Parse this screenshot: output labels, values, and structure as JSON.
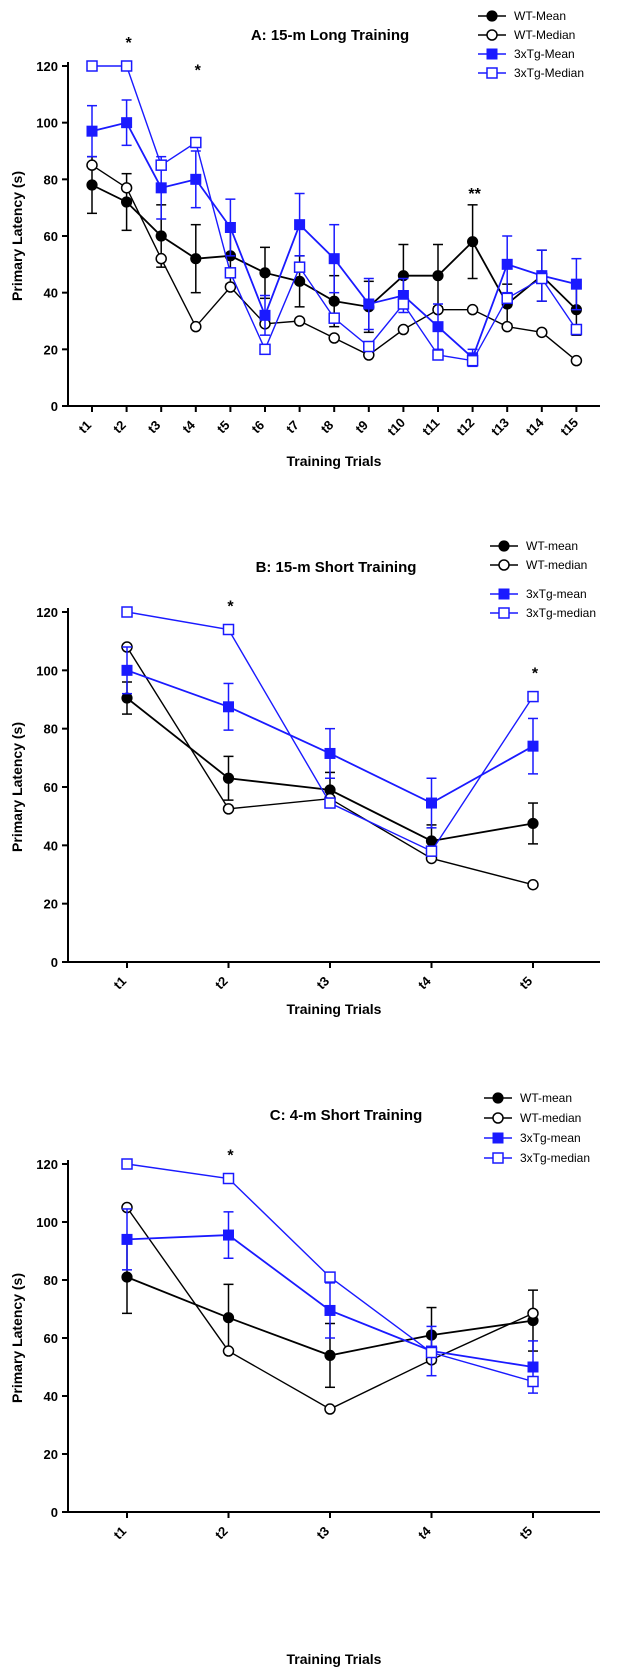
{
  "chart_data": [
    {
      "type": "line",
      "title": "A: 15-m Long Training",
      "xlabel": "Training Trials",
      "ylabel": "Primary Latency (s)",
      "ylim": [
        0,
        120
      ],
      "yticks": [
        0,
        20,
        40,
        60,
        80,
        100,
        120
      ],
      "categories": [
        "t1",
        "t2",
        "t3",
        "t4",
        "t5",
        "t6",
        "t7",
        "t8",
        "t9",
        "t10",
        "t11",
        "t12",
        "t13",
        "t14",
        "t15"
      ],
      "legend_position": "top-right",
      "series": [
        {
          "name": "WT-Mean",
          "color": "#000000",
          "marker": "filled-circle",
          "values": [
            78,
            72,
            60,
            52,
            53,
            47,
            44,
            37,
            35,
            46,
            46,
            58,
            36,
            46,
            34
          ],
          "errors": [
            10,
            10,
            11,
            12,
            10,
            9,
            9,
            9,
            9,
            11,
            11,
            13,
            7,
            9,
            9
          ]
        },
        {
          "name": "WT-Median",
          "color": "#000000",
          "marker": "open-circle",
          "values": [
            85,
            77,
            52,
            28,
            42,
            29,
            30,
            24,
            18,
            27,
            34,
            34,
            28,
            26,
            16
          ]
        },
        {
          "name": "3xTg-Mean",
          "color": "#1a1aff",
          "marker": "filled-square",
          "values": [
            97,
            100,
            77,
            80,
            63,
            32,
            64,
            52,
            36,
            39,
            28,
            17,
            50,
            46,
            43
          ],
          "errors": [
            9,
            8,
            11,
            10,
            10,
            7,
            11,
            12,
            9,
            6,
            8,
            3,
            10,
            9,
            9
          ]
        },
        {
          "name": "3xTg-Median",
          "color": "#1a1aff",
          "marker": "open-square",
          "values": [
            120,
            120,
            85,
            93,
            47,
            20,
            49,
            31,
            21,
            36,
            18,
            16,
            38,
            45,
            27
          ]
        }
      ],
      "annotations": [
        {
          "x": "t2",
          "text": "*"
        },
        {
          "x": "t4",
          "text": "*"
        },
        {
          "x": "t12",
          "text": "**"
        }
      ]
    },
    {
      "type": "line",
      "title": "B: 15-m Short Training",
      "xlabel": "Training Trials",
      "ylabel": "Primary Latency (s)",
      "ylim": [
        0,
        120
      ],
      "yticks": [
        0,
        20,
        40,
        60,
        80,
        100,
        120
      ],
      "categories": [
        "t1",
        "t2",
        "t3",
        "t4",
        "t5"
      ],
      "legend_position": "top-right",
      "series": [
        {
          "name": "WT-mean",
          "color": "#000000",
          "marker": "filled-circle",
          "values": [
            90.5,
            63,
            59,
            41.5,
            47.5
          ],
          "errors": [
            5.5,
            7.5,
            6,
            5.5,
            7
          ]
        },
        {
          "name": "WT-median",
          "color": "#000000",
          "marker": "open-circle",
          "values": [
            108,
            52.5,
            56,
            35.5,
            26.5
          ]
        },
        {
          "name": "3xTg-mean",
          "color": "#1a1aff",
          "marker": "filled-square",
          "values": [
            100,
            87.5,
            71.5,
            54.5,
            74
          ],
          "errors": [
            8,
            8,
            8.5,
            8.5,
            9.5
          ]
        },
        {
          "name": "3xTg-median",
          "color": "#1a1aff",
          "marker": "open-square",
          "values": [
            120,
            114,
            54.5,
            38,
            91
          ]
        }
      ],
      "annotations": [
        {
          "x": "t2",
          "text": "*"
        },
        {
          "x": "t5",
          "text": "*"
        }
      ]
    },
    {
      "type": "line",
      "title": "C: 4-m Short Training",
      "xlabel": "Training Trials",
      "ylabel": "Primary Latency (s)",
      "ylim": [
        0,
        120
      ],
      "yticks": [
        0,
        20,
        40,
        60,
        80,
        100,
        120
      ],
      "categories": [
        "t1",
        "t2",
        "t3",
        "t4",
        "t5"
      ],
      "legend_position": "top-right",
      "series": [
        {
          "name": "WT-mean",
          "color": "#000000",
          "marker": "filled-circle",
          "values": [
            81,
            67,
            54,
            61,
            66
          ],
          "errors": [
            12.5,
            11.5,
            11,
            9.5,
            10.5
          ]
        },
        {
          "name": "WT-median",
          "color": "#000000",
          "marker": "open-circle",
          "values": [
            105,
            55.5,
            35.5,
            52.5,
            68.5
          ]
        },
        {
          "name": "3xTg-mean",
          "color": "#1a1aff",
          "marker": "filled-square",
          "values": [
            94,
            95.5,
            69.5,
            55.5,
            50
          ],
          "errors": [
            10.5,
            8,
            9.5,
            8.5,
            9
          ]
        },
        {
          "name": "3xTg-median",
          "color": "#1a1aff",
          "marker": "open-square",
          "values": [
            120,
            115,
            81,
            55,
            45
          ]
        }
      ],
      "annotations": [
        {
          "x": "t2",
          "text": "*"
        }
      ]
    }
  ]
}
